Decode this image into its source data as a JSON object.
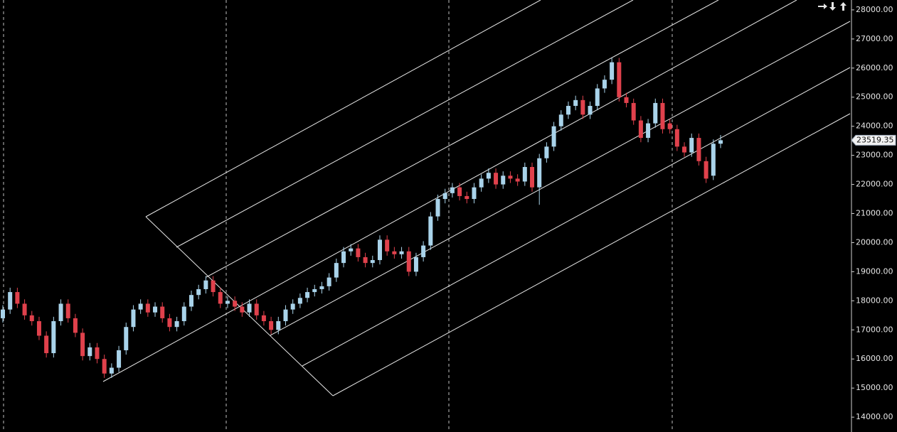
{
  "chart_data": {
    "type": "candlestick",
    "up_color": "#a9d3ea",
    "down_color": "#e0414c",
    "ylim": [
      13490,
      28340
    ],
    "yticks": [
      {
        "value": 14000,
        "label": "14000.00"
      },
      {
        "value": 15000,
        "label": "15000.00"
      },
      {
        "value": 16000,
        "label": "16000.00"
      },
      {
        "value": 17000,
        "label": "17000.00"
      },
      {
        "value": 18000,
        "label": "18000.00"
      },
      {
        "value": 19000,
        "label": "19000.00"
      },
      {
        "value": 20000,
        "label": "20000.00"
      },
      {
        "value": 21000,
        "label": "21000.00"
      },
      {
        "value": 22000,
        "label": "22000.00"
      },
      {
        "value": 23000,
        "label": "23000.00"
      },
      {
        "value": 24000,
        "label": "24000.00"
      },
      {
        "value": 25000,
        "label": "25000.00"
      },
      {
        "value": 26000,
        "label": "26000.00"
      },
      {
        "value": 27000,
        "label": "27000.00"
      },
      {
        "value": 28000,
        "label": "28000.00"
      }
    ],
    "open": [
      17400,
      17700,
      18300,
      17900,
      17500,
      17300,
      16800,
      16200,
      17300,
      17900,
      17400,
      16900,
      16100,
      16400,
      16000,
      15500,
      15700,
      16300,
      17100,
      17700,
      17900,
      17600,
      17800,
      17400,
      17100,
      17300,
      17800,
      18200,
      18400,
      18700,
      18300,
      17900,
      18000,
      17800,
      17600,
      17900,
      17500,
      17300,
      17000,
      17300,
      17700,
      17900,
      18100,
      18300,
      18400,
      18500,
      18800,
      19300,
      19700,
      19800,
      19500,
      19300,
      19400,
      20100,
      19700,
      19600,
      19700,
      19000,
      19500,
      19900,
      20900,
      21500,
      21700,
      21900,
      21600,
      21500,
      21900,
      22200,
      22400,
      22000,
      22300,
      22200,
      22100,
      22600,
      21900,
      22900,
      23300,
      24000,
      24400,
      24700,
      24900,
      24400,
      24700,
      25300,
      25600,
      26200,
      25000,
      24800,
      24200,
      23600,
      24100,
      24800,
      24100,
      23900,
      23300,
      23100,
      23600,
      22800,
      22300,
      23400
    ],
    "high": [
      17850,
      18450,
      18450,
      18050,
      17650,
      17450,
      16950,
      17450,
      18050,
      18050,
      17550,
      17050,
      16550,
      16550,
      16150,
      15850,
      16450,
      17250,
      17850,
      18050,
      18050,
      17950,
      17950,
      17550,
      17450,
      17950,
      18350,
      18550,
      18850,
      18850,
      18450,
      18150,
      18150,
      17950,
      18050,
      18050,
      17650,
      17450,
      17450,
      17850,
      18050,
      18250,
      18450,
      18550,
      18650,
      18950,
      19450,
      19850,
      19950,
      19950,
      19650,
      19550,
      20250,
      20250,
      19850,
      19850,
      19850,
      19650,
      20050,
      21050,
      21650,
      21850,
      22050,
      22050,
      21750,
      22050,
      22350,
      22550,
      22550,
      22450,
      22450,
      22350,
      22750,
      22750,
      23050,
      23450,
      24150,
      24550,
      24850,
      25050,
      25050,
      24850,
      25450,
      25750,
      26350,
      26350,
      25150,
      24950,
      24350,
      24250,
      24950,
      24950,
      24250,
      24050,
      23450,
      23750,
      23750,
      22950,
      23550,
      23700
    ],
    "low": [
      17250,
      17550,
      17750,
      17350,
      17150,
      16650,
      16050,
      16050,
      17150,
      17250,
      16750,
      15950,
      15950,
      15850,
      15350,
      15350,
      15550,
      16150,
      16950,
      17550,
      17450,
      17450,
      17250,
      16950,
      16950,
      17150,
      17650,
      18050,
      18250,
      18150,
      17750,
      17750,
      17650,
      17450,
      17450,
      17350,
      17150,
      16850,
      16850,
      17150,
      17550,
      17750,
      17950,
      18150,
      18250,
      18350,
      18650,
      19150,
      19550,
      19350,
      19150,
      19150,
      19250,
      19550,
      19450,
      19450,
      18850,
      18850,
      19350,
      19750,
      20750,
      21350,
      21550,
      21450,
      21350,
      21350,
      21750,
      22050,
      21850,
      21850,
      22050,
      21950,
      21950,
      21750,
      21300,
      22750,
      23150,
      23850,
      24250,
      24550,
      24250,
      24250,
      24550,
      25150,
      25450,
      24850,
      24650,
      24050,
      23450,
      23450,
      23950,
      23750,
      23750,
      23150,
      22950,
      22950,
      22650,
      22050,
      22150,
      23250
    ],
    "close": [
      17700,
      18300,
      17900,
      17500,
      17300,
      16800,
      16200,
      17300,
      17900,
      17400,
      16900,
      16100,
      16400,
      16000,
      15500,
      15700,
      16300,
      17100,
      17700,
      17900,
      17600,
      17800,
      17400,
      17100,
      17300,
      17800,
      18200,
      18400,
      18700,
      18300,
      17900,
      18000,
      17800,
      17600,
      17900,
      17500,
      17300,
      17000,
      17300,
      17700,
      17900,
      18100,
      18300,
      18400,
      18500,
      18800,
      19300,
      19700,
      19800,
      19500,
      19300,
      19400,
      20100,
      19700,
      19600,
      19700,
      19000,
      19500,
      19900,
      20900,
      21500,
      21700,
      21900,
      21600,
      21500,
      21900,
      22200,
      22400,
      22000,
      22300,
      22200,
      22100,
      22600,
      21900,
      22900,
      23300,
      24000,
      24400,
      24700,
      24900,
      24400,
      24700,
      25300,
      25600,
      26200,
      25000,
      24800,
      24200,
      23600,
      24100,
      24800,
      23900,
      23900,
      23300,
      23100,
      23600,
      22800,
      22200,
      23400,
      23519.35
    ]
  }
}
